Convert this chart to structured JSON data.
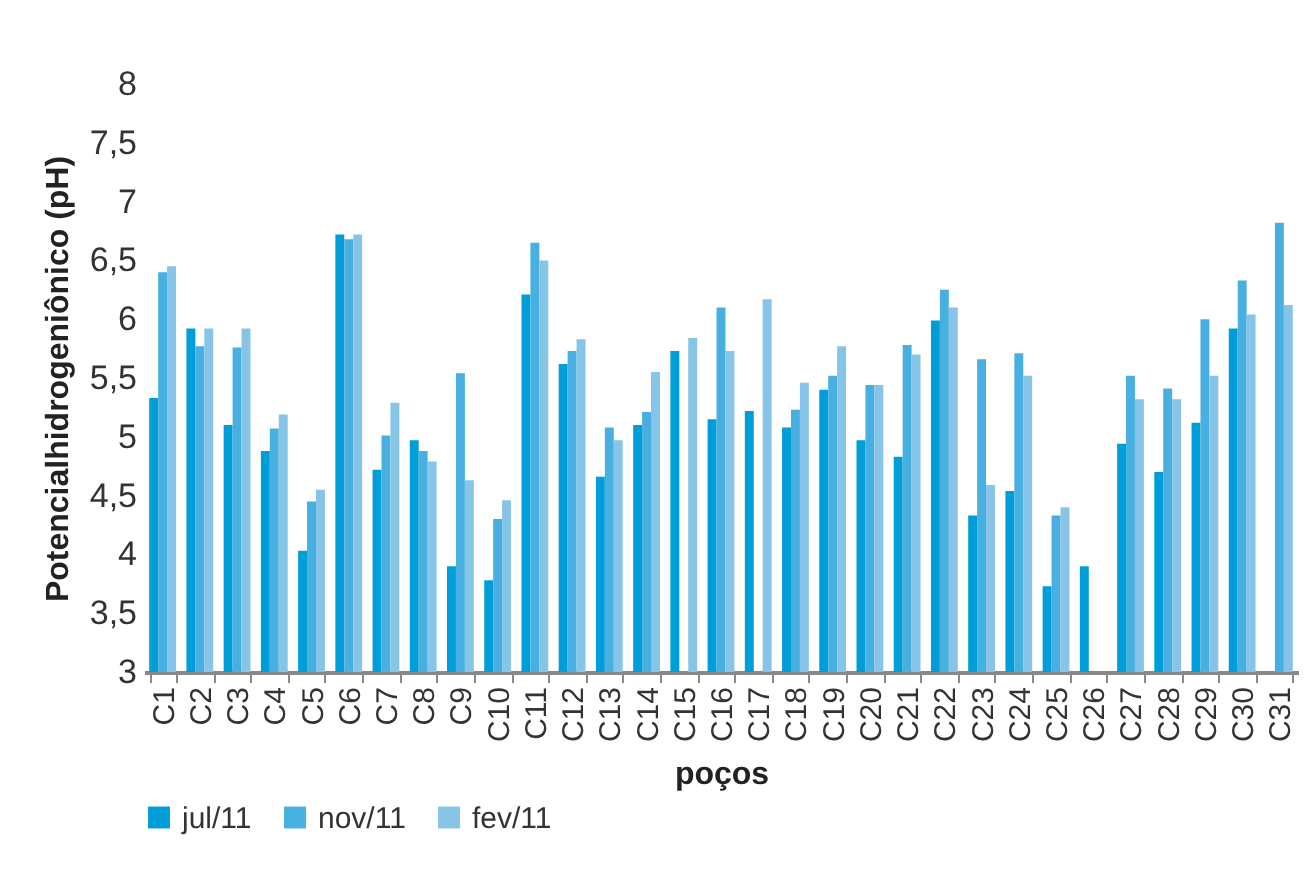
{
  "chart_data": {
    "type": "bar",
    "xlabel": "poços",
    "ylabel": "Potencialhidrogeniônico (pH)",
    "categories": [
      "C1",
      "C2",
      "C3",
      "C4",
      "C5",
      "C6",
      "C7",
      "C8",
      "C9",
      "C10",
      "C11",
      "C12",
      "C13",
      "C14",
      "C15",
      "C16",
      "C17",
      "C18",
      "C19",
      "C20",
      "C21",
      "C22",
      "C23",
      "C24",
      "C25",
      "C26",
      "C27",
      "C28",
      "C29",
      "C30",
      "C31"
    ],
    "series": [
      {
        "name": "jul/11",
        "color": "#009ed8",
        "values": [
          5.33,
          5.92,
          5.1,
          4.88,
          4.03,
          6.72,
          4.72,
          4.97,
          3.9,
          3.78,
          6.21,
          5.62,
          4.66,
          5.1,
          5.73,
          5.15,
          5.22,
          5.08,
          5.4,
          4.97,
          4.83,
          5.99,
          4.33,
          4.54,
          3.73,
          3.9,
          4.94,
          4.7,
          5.12,
          5.92,
          null
        ]
      },
      {
        "name": "nov/11",
        "color": "#47b0e0",
        "values": [
          6.4,
          5.77,
          5.76,
          5.07,
          4.45,
          6.68,
          5.01,
          4.88,
          5.54,
          4.3,
          6.65,
          5.73,
          5.08,
          5.21,
          null,
          6.1,
          null,
          5.23,
          5.52,
          5.44,
          5.78,
          6.25,
          5.66,
          5.71,
          4.33,
          null,
          5.52,
          5.41,
          6.0,
          6.33,
          6.82
        ]
      },
      {
        "name": "fev/11",
        "color": "#86c4e8",
        "values": [
          6.45,
          5.92,
          5.92,
          5.19,
          4.55,
          6.72,
          5.29,
          4.79,
          4.63,
          4.46,
          6.5,
          5.83,
          4.97,
          5.55,
          5.84,
          5.73,
          6.17,
          5.46,
          5.77,
          5.44,
          5.7,
          6.1,
          4.59,
          5.52,
          4.4,
          null,
          5.32,
          5.32,
          5.52,
          6.04,
          6.12
        ]
      }
    ],
    "ylim": [
      3,
      8
    ],
    "yticks": [
      3,
      {
        "value": 3.5,
        "label": "3,5"
      },
      4,
      {
        "value": 4.5,
        "label": "4,5"
      },
      5,
      {
        "value": 5.5,
        "label": "5,5"
      },
      6,
      {
        "value": 6.5,
        "label": "6,5"
      },
      7,
      {
        "value": 7.5,
        "label": "7,5"
      },
      8
    ],
    "grid": false,
    "legend": "bottom"
  }
}
